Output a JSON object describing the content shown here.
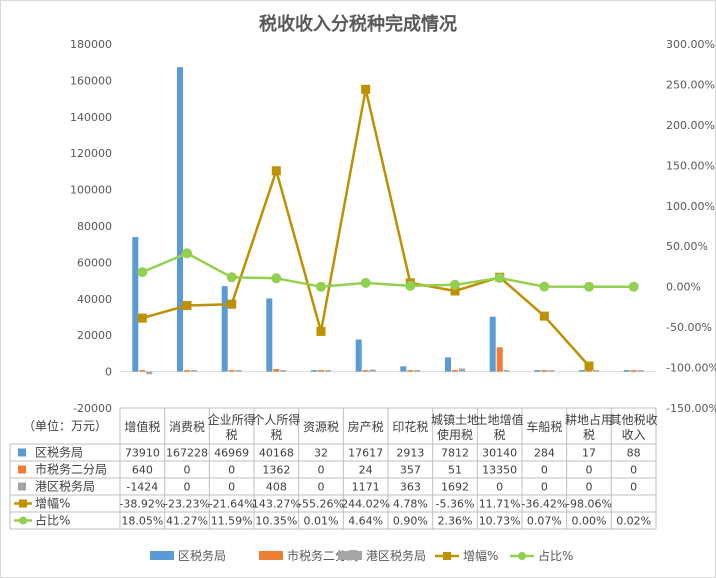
{
  "chart_data": {
    "type": "bar",
    "title": "税收收入分税种完成情况",
    "unit_label": "（单位：万元）",
    "categories": [
      "增值税",
      "消费税",
      "企业所得税",
      "个人所得税",
      "资源税",
      "房产税",
      "印花税",
      "城镇土地使用税",
      "土地增值税",
      "车船税",
      "耕地占用税",
      "其他税收收入"
    ],
    "category_lines": [
      [
        "增值税"
      ],
      [
        "消费税"
      ],
      [
        "企业所得",
        "税"
      ],
      [
        "个人所得",
        "税"
      ],
      [
        "资源税"
      ],
      [
        "房产税"
      ],
      [
        "印花税"
      ],
      [
        "城镇土地",
        "使用税"
      ],
      [
        "土地增值",
        "税"
      ],
      [
        "车船税"
      ],
      [
        "耕地占用",
        "税"
      ],
      [
        "其他税收",
        "收入"
      ]
    ],
    "y_left": {
      "min": -20000,
      "max": 180000,
      "step": 20000,
      "tick_labels": [
        "-20000",
        "0",
        "20000",
        "40000",
        "60000",
        "80000",
        "100000",
        "120000",
        "140000",
        "160000",
        "180000"
      ]
    },
    "y_right": {
      "min": -150,
      "max": 300,
      "step": 50,
      "tick_labels": [
        "-150.00%",
        "-100.00%",
        "-50.00%",
        "0.00%",
        "50.00%",
        "100.00%",
        "150.00%",
        "200.00%",
        "250.00%",
        "300.00%"
      ]
    },
    "grid": false,
    "legend_position": "bottom",
    "series": [
      {
        "name": "区税务局",
        "kind": "bar",
        "axis": "left",
        "color": "#5b9bd5",
        "values": [
          73910,
          167228,
          46969,
          40168,
          32,
          17617,
          2913,
          7812,
          30140,
          284,
          17,
          88
        ],
        "labels": [
          "73910",
          "167228",
          "46969",
          "40168",
          "32",
          "17617",
          "2913",
          "7812",
          "30140",
          "284",
          "17",
          "88"
        ]
      },
      {
        "name": "市税务二分局",
        "kind": "bar",
        "axis": "left",
        "color": "#ed7d31",
        "values": [
          640,
          0,
          0,
          1362,
          0,
          24,
          357,
          51,
          13350,
          0,
          0,
          0
        ],
        "labels": [
          "640",
          "0",
          "0",
          "1362",
          "0",
          "24",
          "357",
          "51",
          "13350",
          "0",
          "0",
          "0"
        ]
      },
      {
        "name": "港区税务局",
        "kind": "bar",
        "axis": "left",
        "color": "#a5a5a5",
        "values": [
          -1424,
          0,
          0,
          408,
          0,
          1171,
          363,
          1692,
          0,
          0,
          0,
          0
        ],
        "labels": [
          "-1424",
          "0",
          "0",
          "408",
          "0",
          "1171",
          "363",
          "1692",
          "0",
          "0",
          "0",
          "0"
        ]
      },
      {
        "name": "增幅%",
        "kind": "line",
        "axis": "right",
        "color": "#bf9000",
        "marker": "square",
        "values": [
          -38.92,
          -23.23,
          -21.64,
          143.27,
          -55.26,
          244.02,
          4.78,
          -5.36,
          11.71,
          -36.42,
          -98.06,
          null
        ],
        "labels": [
          "-38.92%",
          "-23.23%",
          "-21.64%",
          "143.27%",
          "-55.26%",
          "244.02%",
          "4.78%",
          "-5.36%",
          "11.71%",
          "-36.42%",
          "-98.06%",
          ""
        ]
      },
      {
        "name": "占比%",
        "kind": "line",
        "axis": "right",
        "color": "#92d050",
        "marker": "circle",
        "values": [
          18.05,
          41.27,
          11.59,
          10.35,
          0.01,
          4.64,
          0.9,
          2.36,
          10.73,
          0.07,
          0.0,
          0.02
        ],
        "labels": [
          "18.05%",
          "41.27%",
          "11.59%",
          "10.35%",
          "0.01%",
          "4.64%",
          "0.90%",
          "2.36%",
          "10.73%",
          "0.07%",
          "0.00%",
          "0.02%"
        ]
      }
    ]
  }
}
